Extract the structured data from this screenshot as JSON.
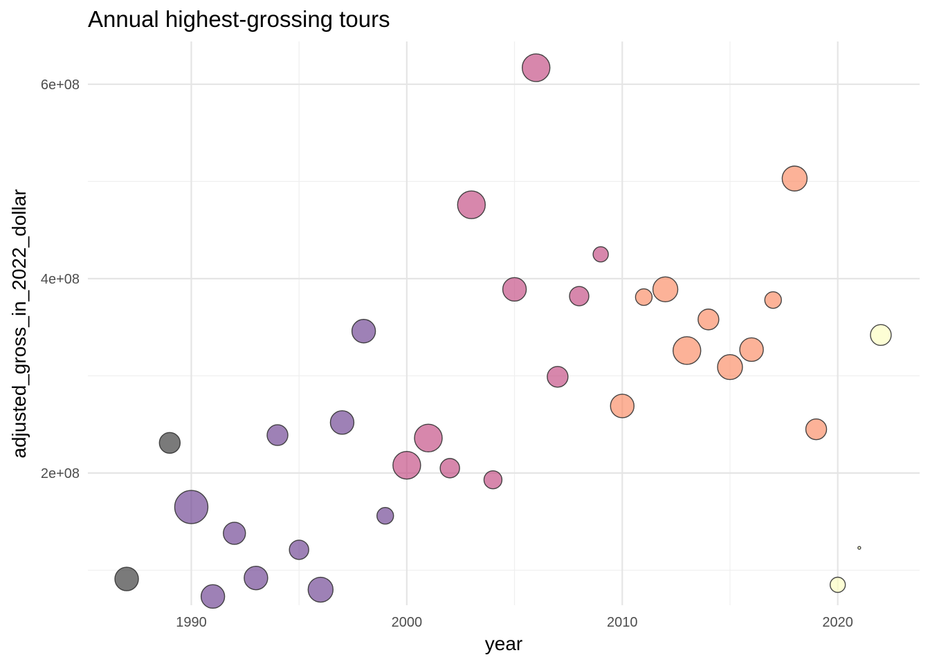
{
  "chart_data": {
    "type": "scatter",
    "title": "Annual highest-grossing tours",
    "xlabel": "year",
    "ylabel": "adjusted_gross_in_2022_dollar",
    "xlim": [
      1985.2,
      2023.8
    ],
    "ylim": [
      64000000,
      644000000
    ],
    "x_ticks": [
      1990,
      2000,
      2010,
      2020
    ],
    "x_tick_labels": [
      "1990",
      "2000",
      "2010",
      "2020"
    ],
    "x_minor_ticks": [
      1995,
      2005,
      2015
    ],
    "y_ticks": [
      200000000,
      400000000,
      600000000
    ],
    "y_tick_labels": [
      "2e+08",
      "4e+08",
      "6e+08"
    ],
    "y_minor_ticks": [
      100000000,
      300000000,
      500000000
    ],
    "grid": true,
    "legend": "none",
    "point_opacity": 0.65,
    "points": [
      {
        "x": 1987,
        "y": 91000000,
        "size": 17,
        "color": "#333333"
      },
      {
        "x": 1989,
        "y": 231000000,
        "size": 15,
        "color": "#333333"
      },
      {
        "x": 1990,
        "y": 165000000,
        "size": 24,
        "color": "#6a3d8f"
      },
      {
        "x": 1991,
        "y": 73000000,
        "size": 17,
        "color": "#6a3d8f"
      },
      {
        "x": 1992,
        "y": 138000000,
        "size": 16,
        "color": "#6a3d8f"
      },
      {
        "x": 1993,
        "y": 92000000,
        "size": 17,
        "color": "#6a3d8f"
      },
      {
        "x": 1994,
        "y": 239000000,
        "size": 15,
        "color": "#6a3d8f"
      },
      {
        "x": 1995,
        "y": 121000000,
        "size": 14,
        "color": "#6a3d8f"
      },
      {
        "x": 1996,
        "y": 80000000,
        "size": 18,
        "color": "#6a3d8f"
      },
      {
        "x": 1997,
        "y": 252000000,
        "size": 17,
        "color": "#6a3d8f"
      },
      {
        "x": 1998,
        "y": 346000000,
        "size": 17,
        "color": "#6a3d8f"
      },
      {
        "x": 1999,
        "y": 156000000,
        "size": 12,
        "color": "#6a3d8f"
      },
      {
        "x": 2000,
        "y": 208000000,
        "size": 20,
        "color": "#c2467f"
      },
      {
        "x": 2001,
        "y": 236000000,
        "size": 20,
        "color": "#c2467f"
      },
      {
        "x": 2002,
        "y": 205000000,
        "size": 14,
        "color": "#c2467f"
      },
      {
        "x": 2003,
        "y": 476000000,
        "size": 20,
        "color": "#c2467f"
      },
      {
        "x": 2004,
        "y": 193000000,
        "size": 13,
        "color": "#c2467f"
      },
      {
        "x": 2005,
        "y": 389000000,
        "size": 17,
        "color": "#c2467f"
      },
      {
        "x": 2006,
        "y": 617000000,
        "size": 20,
        "color": "#c2467f"
      },
      {
        "x": 2007,
        "y": 299000000,
        "size": 15,
        "color": "#c2467f"
      },
      {
        "x": 2008,
        "y": 382000000,
        "size": 14,
        "color": "#c2467f"
      },
      {
        "x": 2009,
        "y": 425000000,
        "size": 11,
        "color": "#c2467f"
      },
      {
        "x": 2010,
        "y": 269000000,
        "size": 17,
        "color": "#fb8861"
      },
      {
        "x": 2011,
        "y": 381000000,
        "size": 12,
        "color": "#fb8861"
      },
      {
        "x": 2012,
        "y": 389000000,
        "size": 18,
        "color": "#fb8861"
      },
      {
        "x": 2013,
        "y": 326000000,
        "size": 20,
        "color": "#fb8861"
      },
      {
        "x": 2014,
        "y": 358000000,
        "size": 15,
        "color": "#fb8861"
      },
      {
        "x": 2015,
        "y": 309000000,
        "size": 18,
        "color": "#fb8861"
      },
      {
        "x": 2016,
        "y": 327000000,
        "size": 17,
        "color": "#fb8861"
      },
      {
        "x": 2017,
        "y": 378000000,
        "size": 12,
        "color": "#fb8861"
      },
      {
        "x": 2018,
        "y": 503000000,
        "size": 18,
        "color": "#fb8861"
      },
      {
        "x": 2019,
        "y": 245000000,
        "size": 15,
        "color": "#fb8861"
      },
      {
        "x": 2020,
        "y": 85000000,
        "size": 11,
        "color": "#fcfdbf"
      },
      {
        "x": 2021,
        "y": 123000000,
        "size": 2,
        "color": "#fcfdbf"
      },
      {
        "x": 2022,
        "y": 342000000,
        "size": 15,
        "color": "#fcfdbf"
      }
    ]
  }
}
